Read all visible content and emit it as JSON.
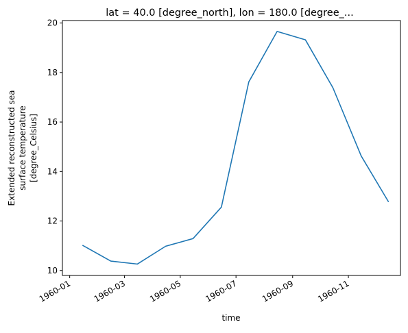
{
  "chart_data": {
    "type": "line",
    "title": "lat = 40.0 [degree_north], lon = 180.0 [degree_...",
    "xlabel": "time",
    "ylabel_lines": [
      "Extended reconstructed sea",
      "surface temperature",
      "[degree_Celsius]"
    ],
    "xlim": [
      "1959-12-24",
      "1960-12-28"
    ],
    "ylim": [
      9.8,
      20.1
    ],
    "grid": false,
    "x_ticks": [
      "1960-01-01",
      "1960-03-01",
      "1960-05-01",
      "1960-07-01",
      "1960-09-01",
      "1960-11-01"
    ],
    "x_tick_labels": [
      "1960-01",
      "1960-03",
      "1960-05",
      "1960-07",
      "1960-09",
      "1960-11"
    ],
    "y_ticks": [
      10,
      12,
      14,
      16,
      18,
      20
    ],
    "y_tick_labels": [
      "10",
      "12",
      "14",
      "16",
      "18",
      "20"
    ],
    "series": [
      {
        "color": "#1f77b4",
        "x": [
          "1960-01-15",
          "1960-02-15",
          "1960-03-15",
          "1960-04-15",
          "1960-05-15",
          "1960-06-15",
          "1960-07-15",
          "1960-08-15",
          "1960-09-15",
          "1960-10-15",
          "1960-11-15",
          "1960-12-15"
        ],
        "values": [
          11.02,
          10.38,
          10.26,
          10.98,
          11.29,
          12.56,
          17.62,
          19.66,
          19.32,
          17.39,
          14.63,
          12.77
        ]
      }
    ]
  }
}
